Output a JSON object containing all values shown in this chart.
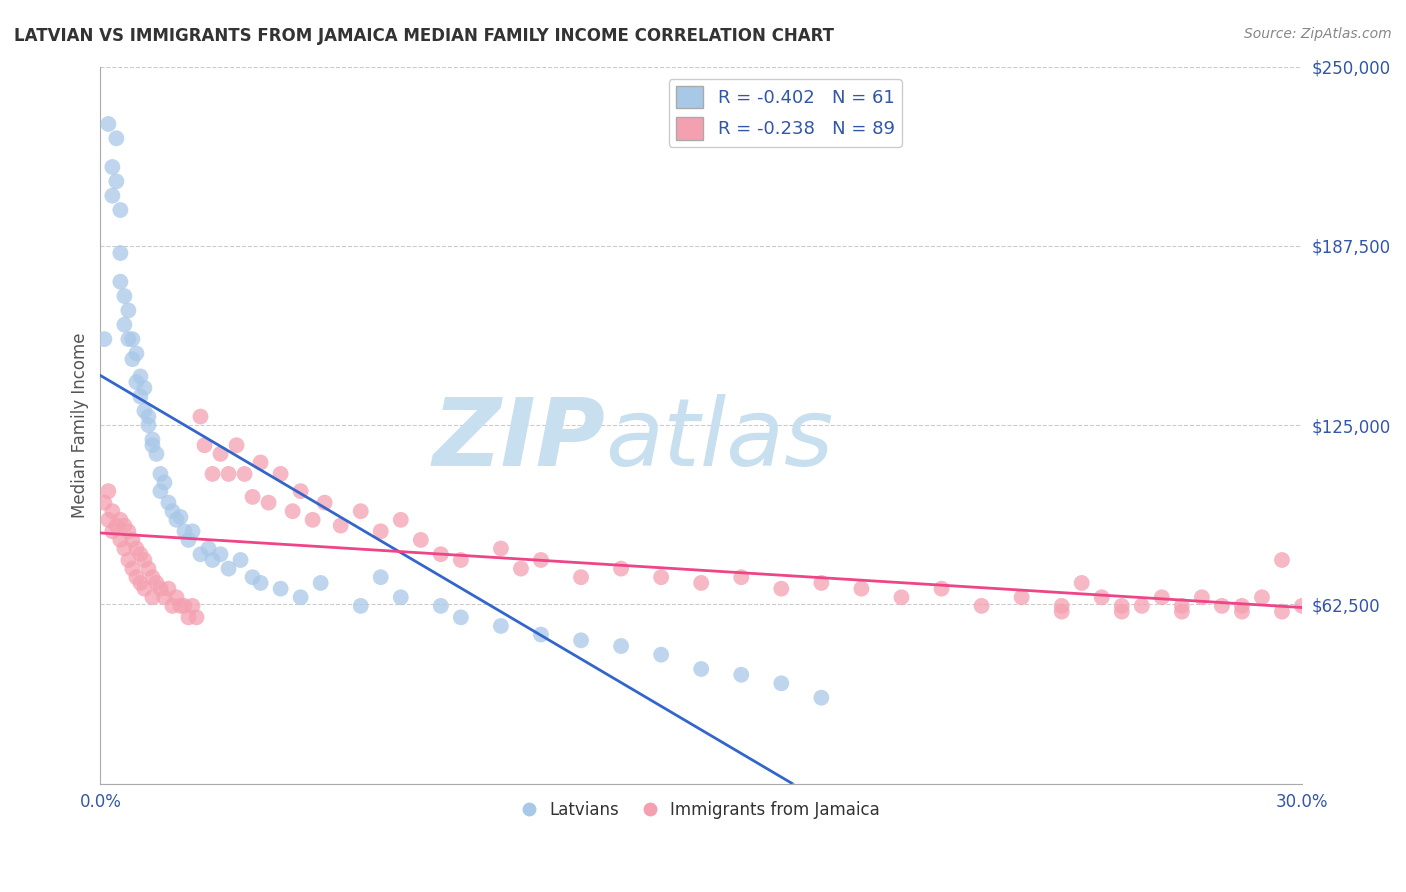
{
  "title": "LATVIAN VS IMMIGRANTS FROM JAMAICA MEDIAN FAMILY INCOME CORRELATION CHART",
  "source": "Source: ZipAtlas.com",
  "ylabel": "Median Family Income",
  "xlim": [
    0.0,
    0.3
  ],
  "ylim": [
    0,
    250000
  ],
  "yticks": [
    0,
    62500,
    125000,
    187500,
    250000
  ],
  "ytick_labels": [
    "",
    "$62,500",
    "$125,000",
    "$187,500",
    "$250,000"
  ],
  "xticks": [
    0.0,
    0.05,
    0.1,
    0.15,
    0.2,
    0.25,
    0.3
  ],
  "xtick_labels": [
    "0.0%",
    "",
    "",
    "",
    "",
    "",
    "30.0%"
  ],
  "latvian_R": -0.402,
  "latvian_N": 61,
  "jamaica_R": -0.238,
  "jamaica_N": 89,
  "blue_color": "#a8c8e8",
  "pink_color": "#f4a0b0",
  "blue_line_color": "#3366cc",
  "pink_line_color": "#ee4488",
  "dashed_line_color": "#bbbbbb",
  "legend_text_color": "#3355aa",
  "watermark_color": "#ddeeff",
  "background_color": "#ffffff",
  "grid_color": "#cccccc",
  "latvian_x": [
    0.001,
    0.002,
    0.003,
    0.003,
    0.004,
    0.004,
    0.005,
    0.005,
    0.005,
    0.006,
    0.006,
    0.007,
    0.007,
    0.008,
    0.008,
    0.009,
    0.009,
    0.01,
    0.01,
    0.011,
    0.011,
    0.012,
    0.012,
    0.013,
    0.013,
    0.014,
    0.015,
    0.015,
    0.016,
    0.017,
    0.018,
    0.019,
    0.02,
    0.021,
    0.022,
    0.023,
    0.025,
    0.027,
    0.028,
    0.03,
    0.032,
    0.035,
    0.038,
    0.04,
    0.045,
    0.05,
    0.055,
    0.065,
    0.07,
    0.075,
    0.085,
    0.09,
    0.1,
    0.11,
    0.12,
    0.13,
    0.14,
    0.15,
    0.16,
    0.17,
    0.18
  ],
  "latvian_y": [
    155000,
    230000,
    215000,
    205000,
    225000,
    210000,
    200000,
    185000,
    175000,
    170000,
    160000,
    165000,
    155000,
    155000,
    148000,
    150000,
    140000,
    142000,
    135000,
    130000,
    138000,
    128000,
    125000,
    120000,
    118000,
    115000,
    108000,
    102000,
    105000,
    98000,
    95000,
    92000,
    93000,
    88000,
    85000,
    88000,
    80000,
    82000,
    78000,
    80000,
    75000,
    78000,
    72000,
    70000,
    68000,
    65000,
    70000,
    62000,
    72000,
    65000,
    62000,
    58000,
    55000,
    52000,
    50000,
    48000,
    45000,
    40000,
    38000,
    35000,
    30000
  ],
  "jamaica_x": [
    0.001,
    0.002,
    0.002,
    0.003,
    0.003,
    0.004,
    0.005,
    0.005,
    0.006,
    0.006,
    0.007,
    0.007,
    0.008,
    0.008,
    0.009,
    0.009,
    0.01,
    0.01,
    0.011,
    0.011,
    0.012,
    0.013,
    0.013,
    0.014,
    0.015,
    0.016,
    0.017,
    0.018,
    0.019,
    0.02,
    0.021,
    0.022,
    0.023,
    0.024,
    0.025,
    0.026,
    0.028,
    0.03,
    0.032,
    0.034,
    0.036,
    0.038,
    0.04,
    0.042,
    0.045,
    0.048,
    0.05,
    0.053,
    0.056,
    0.06,
    0.065,
    0.07,
    0.075,
    0.08,
    0.085,
    0.09,
    0.1,
    0.105,
    0.11,
    0.12,
    0.13,
    0.14,
    0.15,
    0.16,
    0.17,
    0.18,
    0.19,
    0.2,
    0.21,
    0.22,
    0.23,
    0.24,
    0.245,
    0.25,
    0.255,
    0.26,
    0.265,
    0.27,
    0.275,
    0.28,
    0.285,
    0.29,
    0.295,
    0.3,
    0.295,
    0.285,
    0.27,
    0.255,
    0.24
  ],
  "jamaica_y": [
    98000,
    102000,
    92000,
    95000,
    88000,
    90000,
    92000,
    85000,
    90000,
    82000,
    88000,
    78000,
    85000,
    75000,
    82000,
    72000,
    80000,
    70000,
    78000,
    68000,
    75000,
    72000,
    65000,
    70000,
    68000,
    65000,
    68000,
    62000,
    65000,
    62000,
    62000,
    58000,
    62000,
    58000,
    128000,
    118000,
    108000,
    115000,
    108000,
    118000,
    108000,
    100000,
    112000,
    98000,
    108000,
    95000,
    102000,
    92000,
    98000,
    90000,
    95000,
    88000,
    92000,
    85000,
    80000,
    78000,
    82000,
    75000,
    78000,
    72000,
    75000,
    72000,
    70000,
    72000,
    68000,
    70000,
    68000,
    65000,
    68000,
    62000,
    65000,
    62000,
    70000,
    65000,
    60000,
    62000,
    65000,
    62000,
    65000,
    62000,
    60000,
    65000,
    78000,
    62000,
    60000,
    62000,
    60000,
    62000,
    60000
  ]
}
